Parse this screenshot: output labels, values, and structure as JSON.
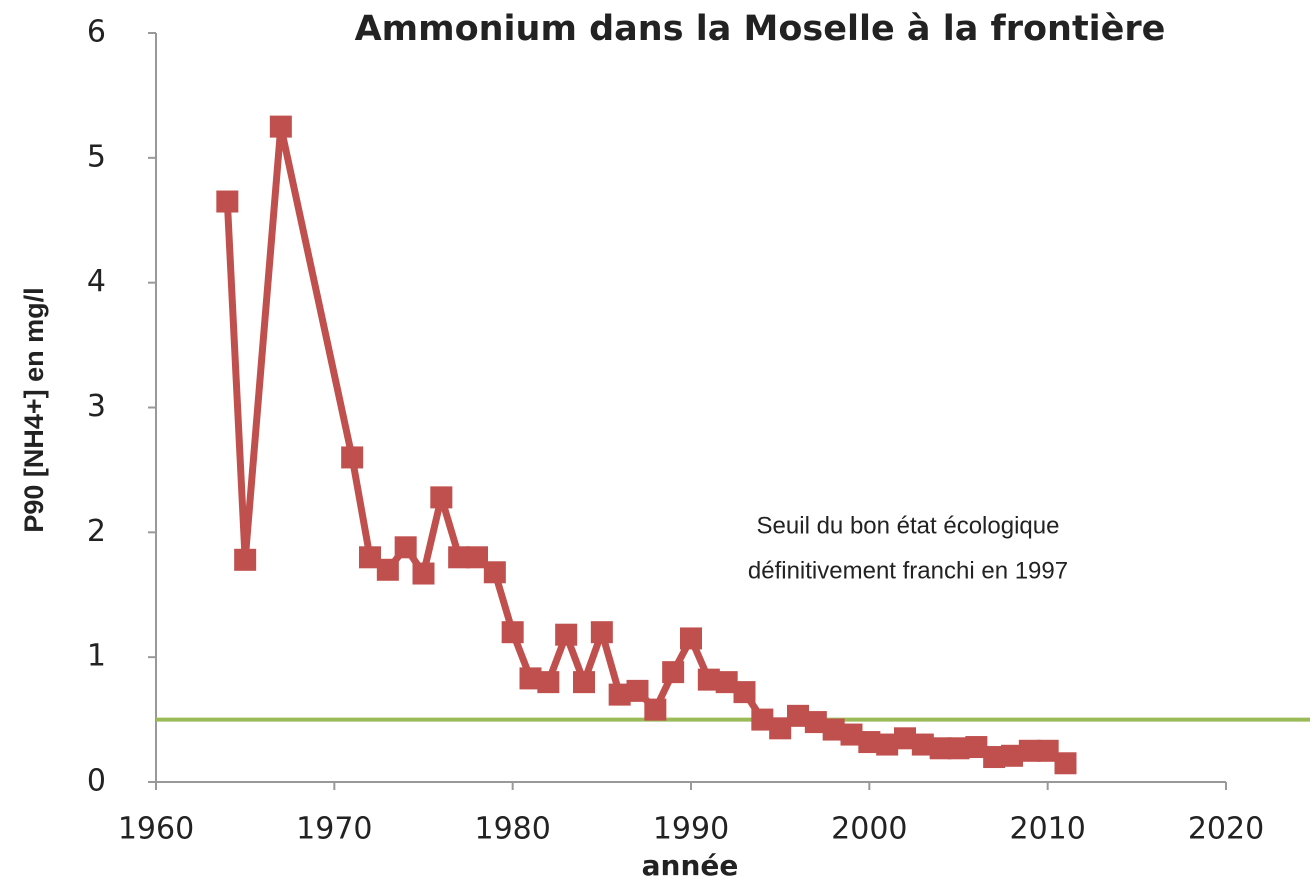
{
  "chart_data": {
    "type": "line",
    "title": "Ammonium dans la Moselle à la frontière",
    "xlabel": "année",
    "ylabel": "P90 [NH4+] en mg/l",
    "annotation": [
      "Seuil du bon état écologique",
      "définitivement franchi en 1997"
    ],
    "x": [
      1964,
      1965,
      1967,
      1971,
      1972,
      1973,
      1974,
      1975,
      1976,
      1977,
      1978,
      1979,
      1980,
      1981,
      1982,
      1983,
      1984,
      1985,
      1986,
      1987,
      1988,
      1989,
      1990,
      1991,
      1992,
      1993,
      1994,
      1995,
      1996,
      1997,
      1998,
      1999,
      2000,
      2001,
      2002,
      2003,
      2004,
      2005,
      2006,
      2007,
      2008,
      2009,
      2010,
      2011
    ],
    "series": [
      {
        "name": "P90 [NH4+]",
        "color": "#c0504d",
        "values": [
          4.65,
          1.78,
          5.25,
          2.6,
          1.8,
          1.7,
          1.88,
          1.67,
          2.28,
          1.8,
          1.8,
          1.68,
          1.2,
          0.83,
          0.8,
          1.18,
          0.8,
          1.2,
          0.7,
          0.73,
          0.58,
          0.88,
          1.15,
          0.82,
          0.8,
          0.72,
          0.5,
          0.43,
          0.53,
          0.48,
          0.42,
          0.38,
          0.32,
          0.3,
          0.35,
          0.3,
          0.27,
          0.27,
          0.28,
          0.2,
          0.21,
          0.25,
          0.25,
          0.15
        ]
      }
    ],
    "threshold": 0.5,
    "threshold_color": "#9bbb59",
    "xlim": [
      1960,
      2020
    ],
    "xticks": [
      1960,
      1970,
      1980,
      1990,
      2000,
      2010,
      2020
    ],
    "ylim": [
      0,
      6
    ],
    "yticks": [
      0,
      1,
      2,
      3,
      4,
      5,
      6
    ]
  }
}
